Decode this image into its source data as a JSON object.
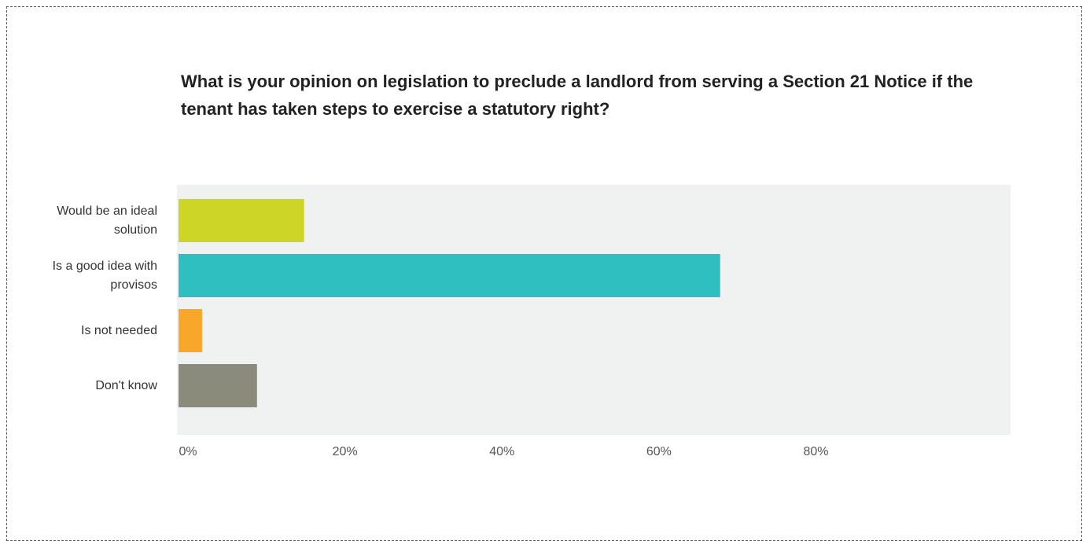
{
  "chart_data": {
    "type": "bar",
    "orientation": "horizontal",
    "title": "What is your opinion on legislation to preclude a landlord from serving a Section 21 Notice if the tenant has taken steps to exercise a statutory right?",
    "categories": [
      "Would be an ideal solution",
      "Is a good idea with provisos",
      "Is not needed",
      "Don't know"
    ],
    "values": [
      16,
      69,
      3,
      10
    ],
    "colors": [
      "#cdd626",
      "#2fbfc0",
      "#f9a72b",
      "#8b8b7b"
    ],
    "xlim": [
      0,
      106
    ],
    "xticks": [
      {
        "value": 0,
        "label": "0%"
      },
      {
        "value": 20,
        "label": "20%"
      },
      {
        "value": 40,
        "label": "40%"
      },
      {
        "value": 60,
        "label": "60%"
      },
      {
        "value": 80,
        "label": "80%"
      }
    ],
    "grid": false
  }
}
